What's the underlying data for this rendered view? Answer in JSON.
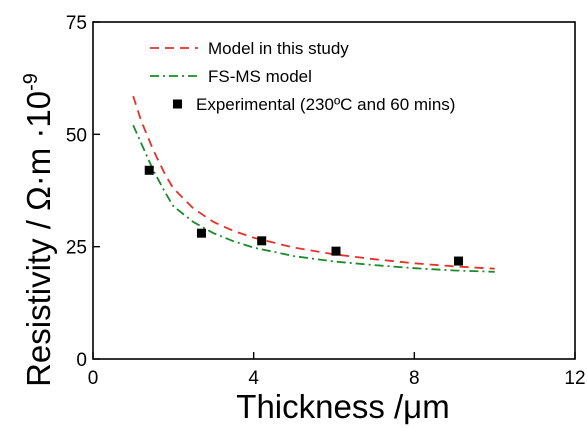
{
  "chart_data": {
    "type": "line",
    "xlabel": "Thickness /μm",
    "ylabel": "Resistivity  / Ω·m ·10",
    "ylabel_exponent": "-9",
    "xlim": [
      0,
      12
    ],
    "ylim": [
      0,
      75
    ],
    "x_ticks": [
      0,
      4,
      8,
      12
    ],
    "y_ticks": [
      0,
      25,
      50,
      75
    ],
    "grid": false,
    "legend_position": "top",
    "series": [
      {
        "name": "Model in this study",
        "style": "dashed",
        "color": "#e8302a",
        "x": [
          1.0,
          1.2,
          1.5,
          1.8,
          2.0,
          2.5,
          3.0,
          3.5,
          4.0,
          5.0,
          6.0,
          7.0,
          8.0,
          9.0,
          10.0
        ],
        "y": [
          58.5,
          53.0,
          46.5,
          41.0,
          38.0,
          33.5,
          30.5,
          28.5,
          27.0,
          24.8,
          23.3,
          22.2,
          21.3,
          20.6,
          20.1
        ]
      },
      {
        "name": "FS-MS model",
        "style": "dashdot",
        "color": "#1a8a2a",
        "x": [
          1.0,
          1.2,
          1.5,
          1.8,
          2.0,
          2.5,
          3.0,
          3.5,
          4.0,
          5.0,
          6.0,
          7.0,
          8.0,
          9.0,
          10.0
        ],
        "y": [
          52.0,
          48.0,
          42.0,
          37.0,
          34.0,
          30.5,
          28.0,
          26.2,
          24.8,
          22.9,
          21.7,
          20.9,
          20.2,
          19.7,
          19.4
        ]
      },
      {
        "name": "Experimental (230ºC and 60 mins)",
        "style": "markers",
        "color": "#000000",
        "x": [
          1.4,
          2.7,
          4.2,
          6.05,
          9.1
        ],
        "y": [
          42.0,
          28.0,
          26.3,
          24.0,
          21.8
        ]
      }
    ]
  }
}
